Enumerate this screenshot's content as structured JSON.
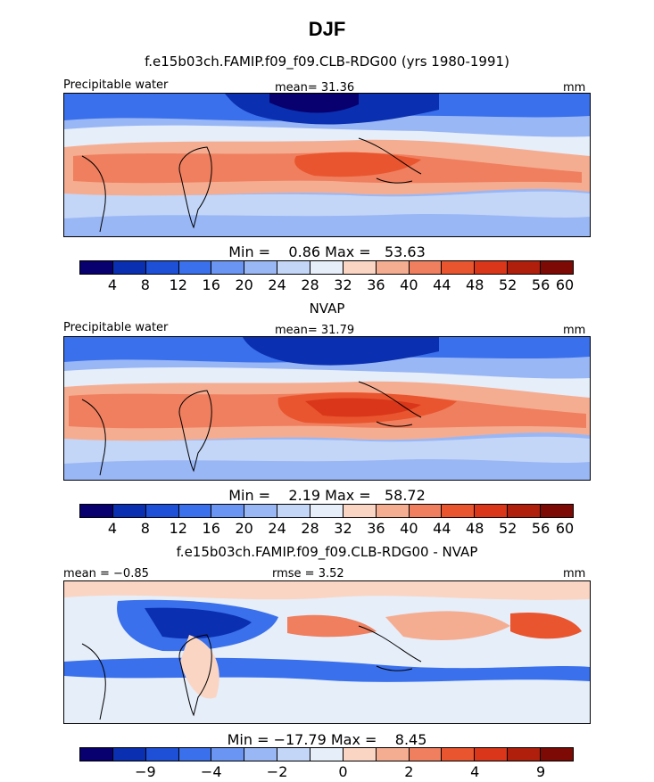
{
  "title": "DJF",
  "panels": [
    {
      "heading": "f.e15b03ch.FAMIP.f09_f09.CLB-RDG00 (yrs 1980-1991)",
      "field_label": "Precipitable water",
      "center_label": "mean=  31.36",
      "units": "mm",
      "stats": "Min =    0.86 Max =   53.63",
      "colorbar_ticks": [
        "4",
        "8",
        "12",
        "16",
        "20",
        "24",
        "28",
        "32",
        "36",
        "40",
        "44",
        "48",
        "52",
        "56",
        "60"
      ],
      "palette": "abs"
    },
    {
      "heading": "NVAP",
      "field_label": "Precipitable water",
      "center_label": "mean=  31.79",
      "units": "mm",
      "stats": "Min =    2.19 Max =   58.72",
      "colorbar_ticks": [
        "4",
        "8",
        "12",
        "16",
        "20",
        "24",
        "28",
        "32",
        "36",
        "40",
        "44",
        "48",
        "52",
        "56",
        "60"
      ],
      "palette": "abs"
    },
    {
      "heading": "f.e15b03ch.FAMIP.f09_f09.CLB-RDG00 - NVAP",
      "field_label": "mean =  −0.85",
      "center_label": "rmse =    3.52",
      "units": "mm",
      "stats": "Min = −17.79 Max =    8.45",
      "colorbar_ticks": [
        "−9",
        "−4",
        "−2",
        "0",
        "2",
        "4",
        "9"
      ],
      "palette": "diff"
    }
  ],
  "colors": {
    "abs": [
      "#08006e",
      "#0a2fb0",
      "#1d50d6",
      "#3a70ec",
      "#6b95f2",
      "#9ab7f5",
      "#c3d6f7",
      "#e6eef9",
      "#fad5c3",
      "#f5ad92",
      "#ef7f5e",
      "#e9552e",
      "#d9361a",
      "#b01f0c",
      "#7d0a04"
    ],
    "diff": [
      "#08006e",
      "#0a2fb0",
      "#1d50d6",
      "#3a70ec",
      "#6b95f2",
      "#9ab7f5",
      "#c3d6f7",
      "#e6eef9",
      "#fad5c3",
      "#f5ad92",
      "#ef7f5e",
      "#e9552e",
      "#d9361a",
      "#b01f0c",
      "#7d0a04"
    ]
  }
}
